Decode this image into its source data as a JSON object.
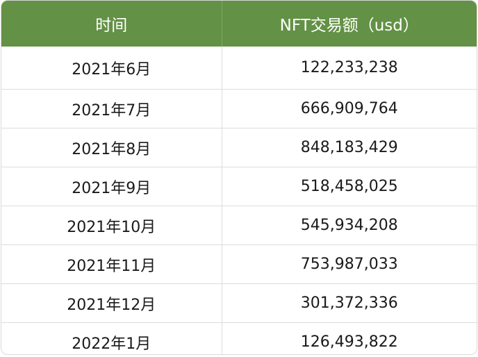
{
  "table": {
    "headers": [
      "时间",
      "NFT交易额（usd）"
    ],
    "rows": [
      [
        "2021年6月",
        "122,233,238"
      ],
      [
        "2021年7月",
        "666,909,764"
      ],
      [
        "2021年8月",
        "848,183,429"
      ],
      [
        "2021年9月",
        "518,458,025"
      ],
      [
        "2021年10月",
        "545,934,208"
      ],
      [
        "2021年11月",
        "753,987,033"
      ],
      [
        "2021年12月",
        "301,372,336"
      ],
      [
        "2022年1月",
        "126,493,822"
      ]
    ]
  },
  "colors": {
    "header_bg": "#639145",
    "header_text": "#ffffff",
    "border": "#dcdcdc"
  }
}
